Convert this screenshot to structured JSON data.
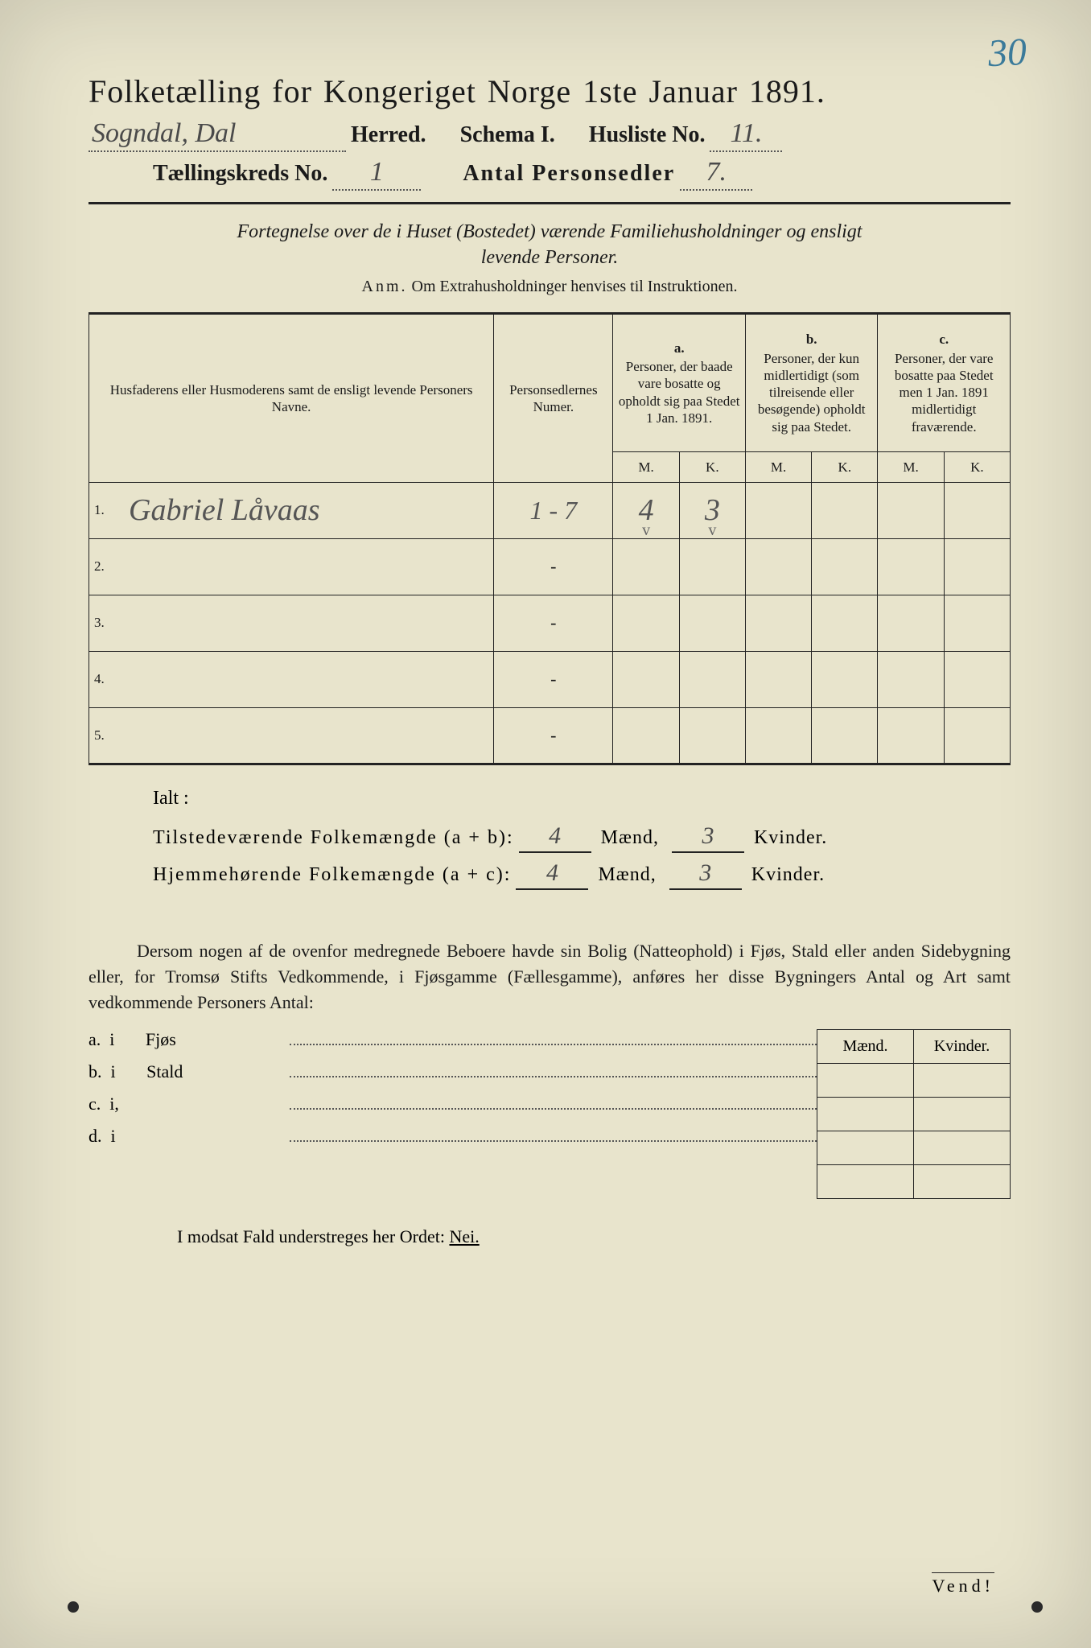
{
  "page": {
    "handwritten_page_no": "30",
    "title": "Folketælling for Kongeriget Norge 1ste Januar 1891.",
    "header": {
      "herred_hand": "Sogndal, Dal",
      "herred_label": "Herred.",
      "schema_label": "Schema I.",
      "husliste_label": "Husliste No.",
      "husliste_hand": "11.",
      "kreds_label": "Tællingskreds No.",
      "kreds_hand": "1",
      "antal_label": "Antal Personsedler",
      "antal_hand": "7."
    },
    "fortegnelse_line1": "Fortegnelse over de i Huset (Bostedet) værende Familiehusholdninger og ensligt",
    "fortegnelse_line2": "levende Personer.",
    "anm_prefix": "Anm.",
    "anm_text": "Om Extrahusholdninger henvises til Instruktionen.",
    "table": {
      "col1": "Husfaderens eller Husmoderens samt de ensligt levende Personers Navne.",
      "col2": "Personsedlernes Numer.",
      "col_a_letter": "a.",
      "col_a": "Personer, der baade vare bosatte og opholdt sig paa Stedet 1 Jan. 1891.",
      "col_b_letter": "b.",
      "col_b": "Personer, der kun midlertidigt (som tilreisende eller besøgende) opholdt sig paa Stedet.",
      "col_c_letter": "c.",
      "col_c": "Personer, der vare bosatte paa Stedet men 1 Jan. 1891 midlertidigt fraværende.",
      "M": "M.",
      "K": "K.",
      "rows": [
        {
          "n": "1.",
          "name": "Gabriel Låvaas",
          "pers": "1 - 7",
          "aM": "4",
          "aK": "3",
          "check": "v"
        },
        {
          "n": "2.",
          "name": "",
          "pers": "-",
          "aM": "",
          "aK": ""
        },
        {
          "n": "3.",
          "name": "",
          "pers": "-",
          "aM": "",
          "aK": ""
        },
        {
          "n": "4.",
          "name": "",
          "pers": "-",
          "aM": "",
          "aK": ""
        },
        {
          "n": "5.",
          "name": "",
          "pers": "-",
          "aM": "",
          "aK": ""
        }
      ]
    },
    "ialt": {
      "title": "Ialt :",
      "line1_label": "Tilstedeværende Folkemængde (a + b):",
      "line2_label": "Hjemmehørende Folkemængde (a + c):",
      "m1": "4",
      "k1": "3",
      "m2": "4",
      "k2": "3",
      "maend": "Mænd,",
      "kvinder": "Kvinder."
    },
    "dersom": "Dersom nogen af de ovenfor medregnede Beboere havde sin Bolig (Natteophold) i Fjøs, Stald eller anden Sidebygning eller, for Tromsø Stifts Vedkommende, i Fjøsgamme (Fællesgamme), anføres her disse Bygningers Antal og Art samt vedkommende Personers Antal:",
    "buildings": {
      "head_m": "Mænd.",
      "head_k": "Kvinder.",
      "rows": [
        {
          "k": "a.  i       Fjøs"
        },
        {
          "k": "b.  i       Stald"
        },
        {
          "k": "c.  i,"
        },
        {
          "k": "d.  i"
        }
      ]
    },
    "modsat": "I modsat Fald understreges her Ordet: ",
    "nei": "Nei.",
    "vend": "Vend!",
    "colors": {
      "paper": "#e8e4cc",
      "ink": "#1a1a1a",
      "hand": "#4a4a4a",
      "blue_pencil": "#3a7a9a",
      "border": "#222222",
      "dot": "#555555"
    },
    "fonts": {
      "title_pt": 40,
      "header_pt": 28,
      "body_pt": 22,
      "table_head_pt": 17,
      "hand_pt": 34
    }
  }
}
